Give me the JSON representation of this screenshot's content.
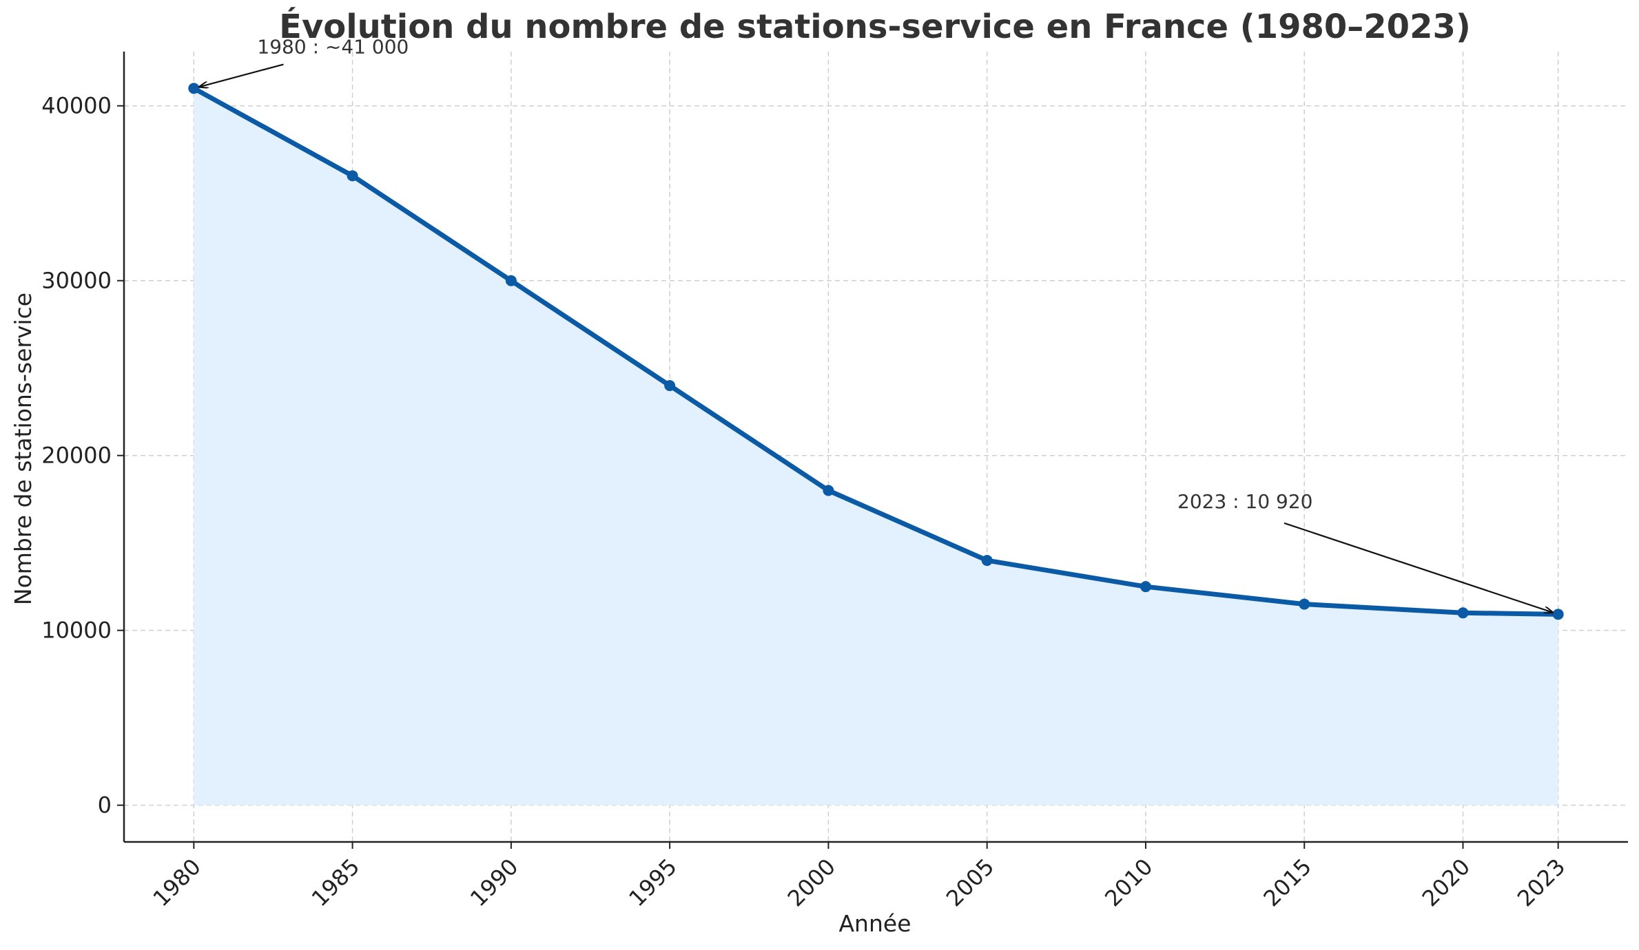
{
  "chart_data": {
    "type": "area",
    "title": "Évolution du nombre de stations-service en France (1980–2023)",
    "xlabel": "Année",
    "ylabel": "Nombre de stations-service",
    "x": [
      1980,
      1985,
      1990,
      1995,
      2000,
      2005,
      2010,
      2015,
      2020,
      2023
    ],
    "series": [
      {
        "values": [
          41000,
          36000,
          30000,
          24000,
          18000,
          14000,
          12500,
          11500,
          11000,
          10920
        ]
      }
    ],
    "xlim": [
      1977.8,
      2025.2
    ],
    "ylim": [
      -2100,
      43100
    ],
    "xticks": [
      "1980",
      "1985",
      "1990",
      "1995",
      "2000",
      "2005",
      "2010",
      "2015",
      "2020",
      "2023"
    ],
    "yticks": [
      "0",
      "10000",
      "20000",
      "30000",
      "40000"
    ],
    "grid": true,
    "colors": {
      "line": "#0b5aa6",
      "fill": "#e3f0fd",
      "text": "#333333"
    },
    "annotations": [
      {
        "text": "1980 : ~41 000",
        "point_x": 1980,
        "point_y": 41000,
        "text_x": 1982,
        "text_y": 43000
      },
      {
        "text": "2023 : 10 920",
        "point_x": 2023,
        "point_y": 10920,
        "text_x": 2011,
        "text_y": 17000
      }
    ]
  }
}
